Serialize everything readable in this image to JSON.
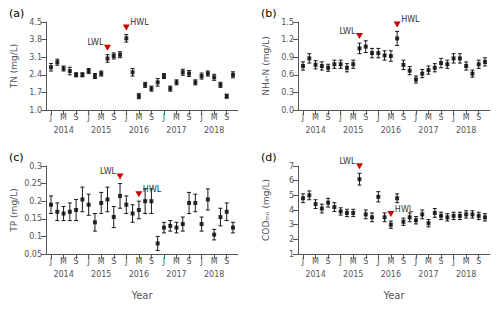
{
  "chart_data": [
    {
      "type": "scatter",
      "title": "(a)",
      "ylabel": "TN (mg/L)",
      "marker": "square",
      "color": "#000000",
      "grid": false,
      "x": [
        0,
        1,
        2,
        3,
        4,
        5,
        6,
        7,
        8,
        9,
        10,
        11,
        12,
        13,
        14,
        15,
        16,
        17,
        18,
        19,
        20,
        21,
        22,
        23,
        24,
        25,
        26,
        27,
        28,
        29
      ],
      "values": [
        2.7,
        2.9,
        2.65,
        2.55,
        2.4,
        2.4,
        2.55,
        2.35,
        2.45,
        3.05,
        3.15,
        3.2,
        3.85,
        2.5,
        1.55,
        2.0,
        1.85,
        2.1,
        2.35,
        1.85,
        2.1,
        2.5,
        2.45,
        2.1,
        2.35,
        2.45,
        2.3,
        2.0,
        1.55,
        2.4
      ],
      "errors": [
        0.15,
        0.12,
        0.1,
        0.15,
        0.08,
        0.08,
        0.1,
        0.1,
        0.1,
        0.15,
        0.12,
        0.12,
        0.15,
        0.15,
        0.1,
        0.1,
        0.1,
        0.15,
        0.1,
        0.1,
        0.1,
        0.12,
        0.12,
        0.1,
        0.12,
        0.1,
        0.12,
        0.1,
        0.08,
        0.12
      ],
      "xlim": [
        -0.8,
        29.8
      ],
      "xticks": [
        {
          "value": 0,
          "label": "J"
        },
        {
          "value": 2,
          "label": "M"
        },
        {
          "value": 4,
          "label": "S"
        },
        {
          "value": 6,
          "label": "J"
        },
        {
          "value": 8,
          "label": "M"
        },
        {
          "value": 10,
          "label": "S"
        },
        {
          "value": 12,
          "label": "J"
        },
        {
          "value": 14,
          "label": "M"
        },
        {
          "value": 16,
          "label": "S"
        },
        {
          "value": 18,
          "label": "J"
        },
        {
          "value": 20,
          "label": "M"
        },
        {
          "value": 22,
          "label": "S"
        },
        {
          "value": 24,
          "label": "J"
        },
        {
          "value": 26,
          "label": "M"
        },
        {
          "value": 28,
          "label": "S"
        }
      ],
      "x2lim": [
        -0.8,
        29.8
      ],
      "x2ticks": [
        {
          "value": 2,
          "label": "2014"
        },
        {
          "value": 8,
          "label": "2015"
        },
        {
          "value": 14,
          "label": "2016"
        },
        {
          "value": 20,
          "label": "2017"
        },
        {
          "value": 26,
          "label": "2018"
        }
      ],
      "ylim": [
        1.0,
        4.5
      ],
      "yticks": [
        {
          "value": 1.0,
          "label": "1.0"
        },
        1.7,
        2.4,
        3.1,
        3.8,
        4.5
      ],
      "annotations": [
        {
          "text": "LWL",
          "x": 9,
          "color": "#cc0000"
        },
        {
          "text": "HWL",
          "x": 12,
          "color": "#cc0000"
        }
      ]
    },
    {
      "type": "scatter",
      "title": "(b)",
      "ylabel": "NH₄-N (mg/L)",
      "marker": "square",
      "color": "#000000",
      "grid": false,
      "x": [
        0,
        1,
        2,
        3,
        4,
        5,
        6,
        7,
        8,
        9,
        10,
        11,
        12,
        13,
        14,
        15,
        16,
        17,
        18,
        19,
        20,
        21,
        22,
        23,
        24,
        25,
        26,
        27,
        28,
        29
      ],
      "values": [
        0.75,
        0.88,
        0.77,
        0.75,
        0.72,
        0.78,
        0.78,
        0.72,
        0.78,
        1.05,
        1.08,
        0.97,
        0.97,
        0.93,
        0.92,
        1.22,
        0.77,
        0.67,
        0.52,
        0.62,
        0.68,
        0.72,
        0.8,
        0.78,
        0.88,
        0.88,
        0.75,
        0.62,
        0.78,
        0.82
      ],
      "errors": [
        0.07,
        0.08,
        0.07,
        0.07,
        0.06,
        0.07,
        0.07,
        0.07,
        0.07,
        0.09,
        0.1,
        0.08,
        0.08,
        0.08,
        0.09,
        0.12,
        0.08,
        0.07,
        0.06,
        0.07,
        0.07,
        0.07,
        0.08,
        0.07,
        0.08,
        0.08,
        0.07,
        0.06,
        0.07,
        0.07
      ],
      "xlim": [
        -0.8,
        29.8
      ],
      "xticks": [
        {
          "value": 0,
          "label": "J"
        },
        {
          "value": 2,
          "label": "M"
        },
        {
          "value": 4,
          "label": "S"
        },
        {
          "value": 6,
          "label": "J"
        },
        {
          "value": 8,
          "label": "M"
        },
        {
          "value": 10,
          "label": "S"
        },
        {
          "value": 12,
          "label": "J"
        },
        {
          "value": 14,
          "label": "M"
        },
        {
          "value": 16,
          "label": "S"
        },
        {
          "value": 18,
          "label": "J"
        },
        {
          "value": 20,
          "label": "M"
        },
        {
          "value": 22,
          "label": "S"
        },
        {
          "value": 24,
          "label": "J"
        },
        {
          "value": 26,
          "label": "M"
        },
        {
          "value": 28,
          "label": "S"
        }
      ],
      "x2lim": [
        -0.8,
        29.8
      ],
      "x2ticks": [
        {
          "value": 2,
          "label": "2014"
        },
        {
          "value": 8,
          "label": "2015"
        },
        {
          "value": 14,
          "label": "2016"
        },
        {
          "value": 20,
          "label": "2017"
        },
        {
          "value": 26,
          "label": "2018"
        }
      ],
      "ylim": [
        0.0,
        1.5
      ],
      "yticks": [
        {
          "value": 0.0,
          "label": "0.0"
        },
        0.3,
        0.6,
        0.9,
        1.2,
        1.5
      ],
      "annotations": [
        {
          "text": "LWL",
          "x": 9,
          "color": "#cc0000"
        },
        {
          "text": "HWL",
          "x": 15,
          "color": "#cc0000"
        }
      ]
    },
    {
      "type": "scatter",
      "title": "(c)",
      "ylabel": "TP (mg/L)",
      "xlabel": "Year",
      "marker": "square",
      "color": "#000000",
      "grid": false,
      "x": [
        0,
        1,
        2,
        3,
        4,
        5,
        6,
        7,
        8,
        9,
        10,
        11,
        12,
        13,
        14,
        15,
        16,
        17,
        18,
        19,
        20,
        21,
        22,
        23,
        24,
        25,
        26,
        27,
        28,
        29
      ],
      "values": [
        0.19,
        0.17,
        0.165,
        0.17,
        0.175,
        0.205,
        0.19,
        0.14,
        0.195,
        0.205,
        0.155,
        0.215,
        0.19,
        0.165,
        0.175,
        0.2,
        0.2,
        0.08,
        0.125,
        0.13,
        0.125,
        0.135,
        0.195,
        0.195,
        0.135,
        0.205,
        0.105,
        0.155,
        0.17,
        0.125
      ],
      "errors": [
        0.025,
        0.025,
        0.02,
        0.025,
        0.03,
        0.035,
        0.03,
        0.025,
        0.03,
        0.035,
        0.03,
        0.035,
        0.025,
        0.025,
        0.025,
        0.035,
        0.035,
        0.02,
        0.015,
        0.015,
        0.015,
        0.02,
        0.03,
        0.025,
        0.02,
        0.03,
        0.015,
        0.025,
        0.025,
        0.015
      ],
      "xlim": [
        -0.8,
        29.8
      ],
      "xticks": [
        {
          "value": 0,
          "label": "J"
        },
        {
          "value": 2,
          "label": "M"
        },
        {
          "value": 4,
          "label": "S"
        },
        {
          "value": 6,
          "label": "J"
        },
        {
          "value": 8,
          "label": "M"
        },
        {
          "value": 10,
          "label": "S"
        },
        {
          "value": 12,
          "label": "J"
        },
        {
          "value": 14,
          "label": "M"
        },
        {
          "value": 16,
          "label": "S"
        },
        {
          "value": 18,
          "label": "J"
        },
        {
          "value": 20,
          "label": "M"
        },
        {
          "value": 22,
          "label": "S"
        },
        {
          "value": 24,
          "label": "J"
        },
        {
          "value": 26,
          "label": "M"
        },
        {
          "value": 28,
          "label": "S"
        }
      ],
      "x2lim": [
        -0.8,
        29.8
      ],
      "x2ticks": [
        {
          "value": 2,
          "label": "2014"
        },
        {
          "value": 8,
          "label": "2015"
        },
        {
          "value": 14,
          "label": "2016"
        },
        {
          "value": 20,
          "label": "2017"
        },
        {
          "value": 26,
          "label": "2018"
        }
      ],
      "ylim": [
        0.05,
        0.3
      ],
      "yticks": [
        0.05,
        0.1,
        0.15,
        0.2,
        0.25,
        0.3
      ],
      "annotations": [
        {
          "text": "LWL",
          "x": 11,
          "color": "#cc0000"
        },
        {
          "text": "HWL",
          "x": 14,
          "color": "#cc0000"
        }
      ]
    },
    {
      "type": "scatter",
      "title": "(d)",
      "ylabel": "CODₘₙ (mg/L)",
      "xlabel": "Year",
      "marker": "square",
      "color": "#000000",
      "grid": false,
      "x": [
        0,
        1,
        2,
        3,
        4,
        5,
        6,
        7,
        8,
        9,
        10,
        11,
        12,
        13,
        14,
        15,
        16,
        17,
        18,
        19,
        20,
        21,
        22,
        23,
        24,
        25,
        26,
        27,
        28,
        29
      ],
      "values": [
        4.8,
        5.0,
        4.4,
        4.1,
        4.5,
        4.2,
        3.9,
        3.8,
        3.8,
        6.1,
        3.7,
        3.5,
        4.9,
        3.5,
        3.0,
        4.8,
        3.2,
        3.5,
        3.3,
        3.7,
        3.1,
        3.8,
        3.6,
        3.5,
        3.6,
        3.6,
        3.7,
        3.7,
        3.6,
        3.5
      ],
      "errors": [
        0.3,
        0.3,
        0.3,
        0.3,
        0.3,
        0.3,
        0.25,
        0.25,
        0.25,
        0.4,
        0.3,
        0.3,
        0.35,
        0.3,
        0.25,
        0.3,
        0.25,
        0.3,
        0.25,
        0.3,
        0.25,
        0.3,
        0.25,
        0.25,
        0.25,
        0.25,
        0.25,
        0.25,
        0.25,
        0.25
      ],
      "xlim": [
        -0.8,
        29.8
      ],
      "xticks": [
        {
          "value": 0,
          "label": "J"
        },
        {
          "value": 2,
          "label": "M"
        },
        {
          "value": 4,
          "label": "S"
        },
        {
          "value": 6,
          "label": "J"
        },
        {
          "value": 8,
          "label": "M"
        },
        {
          "value": 10,
          "label": "S"
        },
        {
          "value": 12,
          "label": "J"
        },
        {
          "value": 14,
          "label": "M"
        },
        {
          "value": 16,
          "label": "S"
        },
        {
          "value": 18,
          "label": "J"
        },
        {
          "value": 20,
          "label": "M"
        },
        {
          "value": 22,
          "label": "S"
        },
        {
          "value": 24,
          "label": "J"
        },
        {
          "value": 26,
          "label": "M"
        },
        {
          "value": 28,
          "label": "S"
        }
      ],
      "x2lim": [
        -0.8,
        29.8
      ],
      "x2ticks": [
        {
          "value": 2,
          "label": "2014"
        },
        {
          "value": 8,
          "label": "2015"
        },
        {
          "value": 14,
          "label": "2016"
        },
        {
          "value": 20,
          "label": "2017"
        },
        {
          "value": 26,
          "label": "2018"
        }
      ],
      "ylim": [
        1,
        7
      ],
      "yticks": [
        1,
        2,
        3,
        4,
        5,
        6,
        7
      ],
      "annotations": [
        {
          "text": "LWL",
          "x": 9,
          "color": "#cc0000"
        },
        {
          "text": "HWL",
          "x": 14,
          "color": "#cc0000"
        }
      ]
    }
  ]
}
